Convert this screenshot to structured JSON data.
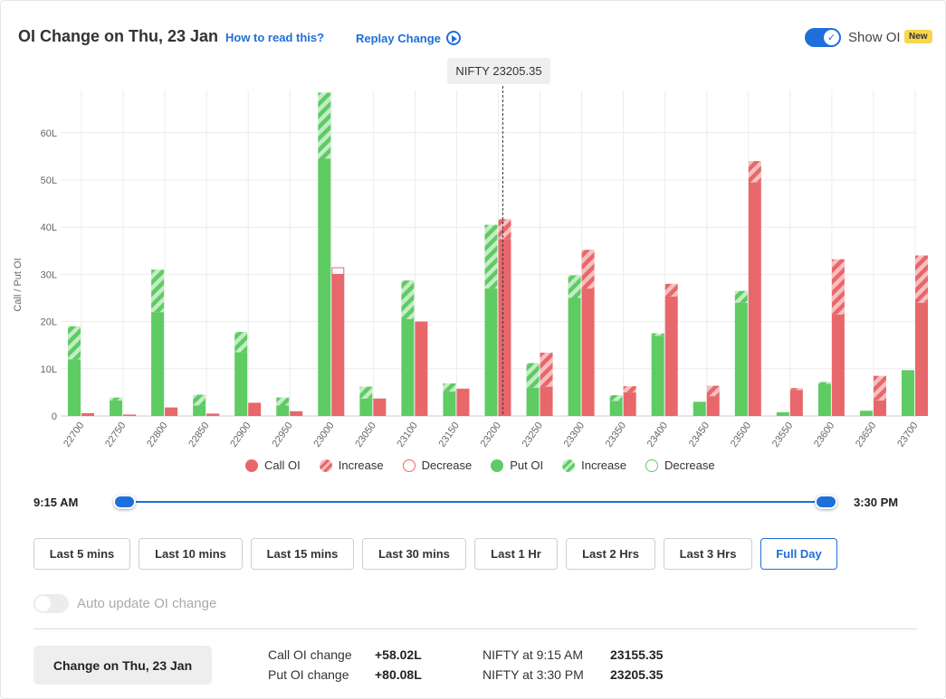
{
  "header": {
    "title": "OI Change on Thu, 23 Jan",
    "how_link": "How to read this?",
    "replay_link": "Replay Change",
    "show_oi_label": "Show OI",
    "new_badge": "New"
  },
  "marker": {
    "label": "NIFTY 23205.35",
    "strike_position": 23205.35
  },
  "chart_data": {
    "type": "bar",
    "ylabel": "Call / Put OI",
    "ylim": [
      0,
      68
    ],
    "yticks": [
      0,
      10,
      20,
      30,
      40,
      50,
      60
    ],
    "ytick_labels": [
      "0",
      "10L",
      "20L",
      "30L",
      "40L",
      "50L",
      "60L"
    ],
    "grid": true,
    "categories": [
      "22700",
      "22750",
      "22800",
      "22850",
      "22900",
      "22950",
      "23000",
      "23050",
      "23100",
      "23150",
      "23200",
      "23250",
      "23300",
      "23350",
      "23400",
      "23450",
      "23500",
      "23550",
      "23600",
      "23650",
      "23700"
    ],
    "series": [
      {
        "name": "Put OI",
        "values": [
          12,
          3.3,
          22,
          2.2,
          13.5,
          2.2,
          54.5,
          3.7,
          20.5,
          5.2,
          27,
          6,
          25,
          3.2,
          17,
          3,
          24,
          0.8,
          6.8,
          1.1,
          9.7
        ]
      },
      {
        "name": "Increase",
        "stack_on": "Put OI",
        "values": [
          7,
          0.6,
          9,
          2.3,
          4.3,
          1.7,
          14,
          2.5,
          8.2,
          1.7,
          13.5,
          5.2,
          4.8,
          1.2,
          0.5,
          0,
          2.5,
          0,
          0.4,
          0,
          0
        ]
      },
      {
        "name": "Call OI",
        "values": [
          0.6,
          0.3,
          1.8,
          0.5,
          2.8,
          1,
          30,
          3.7,
          20,
          5.5,
          37.5,
          6.2,
          27,
          5,
          25.3,
          4.2,
          49.5,
          5.5,
          21.5,
          3.3,
          24
        ]
      },
      {
        "name": "Increase",
        "stack_on": "Call OI",
        "values": [
          0,
          0,
          0,
          0,
          0,
          0,
          0,
          0,
          0,
          0,
          4.2,
          7.2,
          8.2,
          1.3,
          2.7,
          2.2,
          4.5,
          0.4,
          11.7,
          5.2,
          10
        ]
      },
      {
        "name": "Decrease",
        "stack_on": "Call OI",
        "values": [
          0,
          0,
          0,
          0,
          0,
          0,
          1.5,
          0,
          0,
          0.3,
          0,
          0,
          0,
          0,
          0,
          0,
          0,
          0,
          0,
          0,
          0
        ]
      }
    ],
    "legend": [
      "Call OI",
      "Increase",
      "Decrease",
      "Put OI",
      "Increase",
      "Decrease"
    ],
    "legend_position": "bottom",
    "colors": {
      "call": "#e8676a",
      "call_increase": "#f7c0c0",
      "put": "#5ecb63",
      "put_increase": "#c4ecc6"
    }
  },
  "slider": {
    "start_label": "9:15 AM",
    "end_label": "3:30 PM"
  },
  "ranges": [
    "Last 5 mins",
    "Last 10 mins",
    "Last 15 mins",
    "Last 30 mins",
    "Last 1 Hr",
    "Last 2 Hrs",
    "Last 3 Hrs",
    "Full Day"
  ],
  "active_range": "Full Day",
  "auto_update_label": "Auto update OI change",
  "footer": {
    "change_button": "Change on Thu, 23 Jan",
    "call_oi_change_label": "Call OI change",
    "call_oi_change_value": "+58.02L",
    "put_oi_change_label": "Put OI change",
    "put_oi_change_value": "+80.08L",
    "nifty_open_label": "NIFTY at 9:15 AM",
    "nifty_open_value": "23155.35",
    "nifty_close_label": "NIFTY at 3:30 PM",
    "nifty_close_value": "23205.35"
  }
}
